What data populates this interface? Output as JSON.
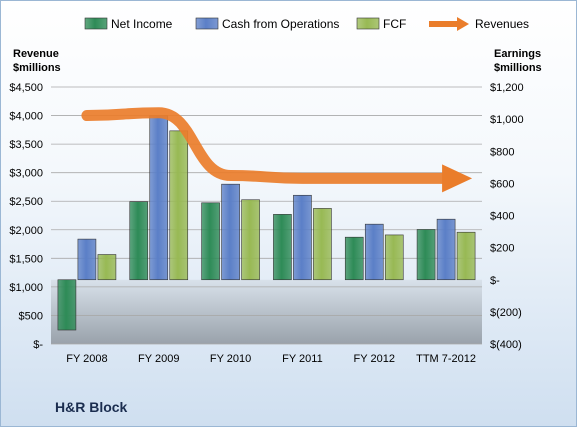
{
  "chart_data": {
    "type": "bar",
    "categories": [
      "FY 2008",
      "FY 2009",
      "FY 2010",
      "FY 2011",
      "FY 2012",
      "TTM 7-2012"
    ],
    "series": [
      {
        "name": "Net Income",
        "axis": "right",
        "color": "#2e8b57",
        "values": [
          -313,
          486,
          479,
          407,
          265,
          313
        ]
      },
      {
        "name": "Cash from Operations",
        "axis": "right",
        "color": "#5b7fc7",
        "values": [
          253,
          1021,
          595,
          526,
          346,
          377
        ]
      },
      {
        "name": "FCF",
        "axis": "right",
        "color": "#98b954",
        "values": [
          157,
          927,
          498,
          444,
          279,
          296
        ]
      },
      {
        "name": "Revenues",
        "axis": "left",
        "type": "line",
        "color": "#ea7d2b",
        "values": [
          4000,
          4050,
          2950,
          2900,
          2900,
          2900
        ]
      }
    ],
    "left_axis": {
      "label": "Revenue\n$millions",
      "min": 0,
      "max": 4500,
      "ticks": [
        0,
        500,
        1000,
        1500,
        2000,
        2500,
        3000,
        3500,
        4000,
        4500
      ],
      "tick_labels": [
        "$-",
        "$500",
        "$1,000",
        "$1,500",
        "$2,000",
        "$2,500",
        "$3,000",
        "$3,500",
        "$4,000",
        "$4,500"
      ]
    },
    "right_axis": {
      "label": "Earnings\n$millions",
      "min": -400,
      "max": 1200,
      "ticks": [
        -400,
        -200,
        0,
        200,
        400,
        600,
        800,
        1000,
        1200
      ],
      "tick_labels": [
        "$(400)",
        "$(200)",
        "$-",
        "$200",
        "$400",
        "$600",
        "$800",
        "$1,000",
        "$1,200"
      ]
    },
    "legend_position": "top",
    "company": "H&R Block"
  }
}
